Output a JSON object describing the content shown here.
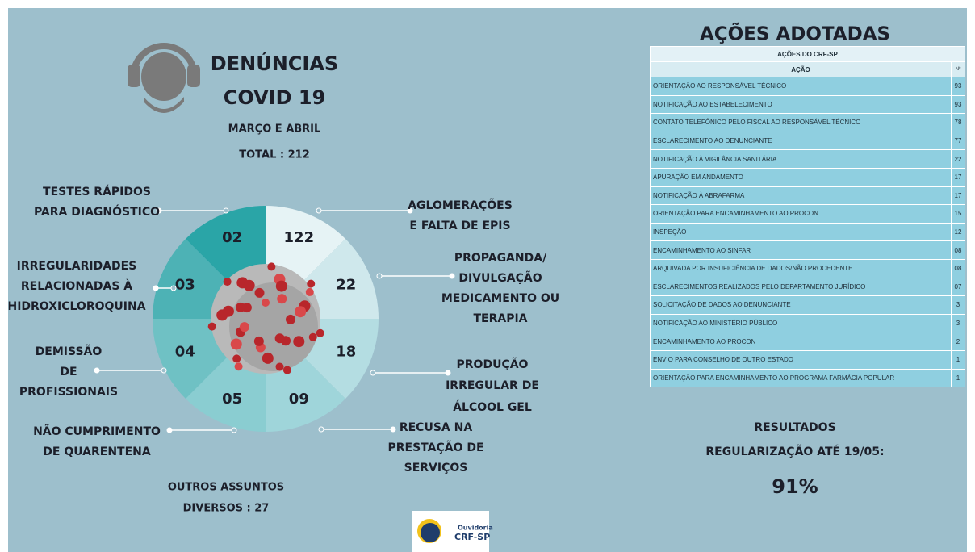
{
  "header": {
    "title": "DENÚNCIAS",
    "subtitle": "COVID 19",
    "period": "MARÇO E ABRIL",
    "total": "TOTAL : 212"
  },
  "segments": [
    {
      "value": "122",
      "label": [
        "AGLOMERAÇÕES",
        "E FALTA DE EPIS"
      ]
    },
    {
      "value": "22",
      "label": [
        "PROPAGANDA/",
        "DIVULGAÇÃO",
        "MEDICAMENTO OU",
        "TERAPIA"
      ]
    },
    {
      "value": "18",
      "label": [
        "PRODUÇÃO",
        "IRREGULAR DE",
        "ÁLCOOL GEL"
      ]
    },
    {
      "value": "09",
      "label": [
        "RECUSA NA",
        "PRESTAÇÃO DE",
        "SERVIÇOS"
      ]
    },
    {
      "value": "05",
      "label": [
        "NÃO CUMPRIMENTO",
        "DE QUARENTENA"
      ]
    },
    {
      "value": "04",
      "label": [
        "DEMISSÃO",
        "DE",
        "PROFISSIONAIS"
      ]
    },
    {
      "value": "03",
      "label": [
        "IRREGULARIDADES",
        "RELACIONADAS À",
        "HIDROXICLOROQUINA"
      ]
    },
    {
      "value": "02",
      "label": [
        "TESTES RÁPIDOS",
        "PARA DIAGNÓSTICO"
      ]
    }
  ],
  "others": [
    "OUTROS ASSUNTOS",
    "DIVERSOS : 27"
  ],
  "table": {
    "title": "AÇÕES ADOTADAS",
    "caption": "AÇÕES DO CRF-SP",
    "columns": [
      "AÇÃO",
      "Nº"
    ],
    "rows": [
      [
        "ORIENTAÇÃO AO RESPONSÁVEL TÉCNICO",
        "93"
      ],
      [
        "NOTIFICAÇÃO AO ESTABELECIMENTO",
        "93"
      ],
      [
        "CONTATO TELEFÔNICO PELO FISCAL AO RESPONSÁVEL TÉCNICO",
        "78"
      ],
      [
        "ESCLARECIMENTO AO DENUNCIANTE",
        "77"
      ],
      [
        "NOTIFICAÇÃO À VIGILÂNCIA SANITÁRIA",
        "22"
      ],
      [
        "APURAÇÃO EM ANDAMENTO",
        "17"
      ],
      [
        "NOTIFICAÇÃO À ABRAFARMA",
        "17"
      ],
      [
        "ORIENTAÇÃO PARA ENCAMINHAMENTO AO PROCON",
        "15"
      ],
      [
        "INSPEÇÃO",
        "12"
      ],
      [
        "ENCAMINHAMENTO AO SINFAR",
        "08"
      ],
      [
        "ARQUIVADA POR INSUFICIÊNCIA DE DADOS/NÃO PROCEDENTE",
        "08"
      ],
      [
        "ESCLARECIMENTOS REALIZADOS PELO DEPARTAMENTO JURÍDICO",
        "07"
      ],
      [
        "SOLICITAÇÃO DE DADOS AO DENUNCIANTE",
        "3"
      ],
      [
        "NOTIFICAÇÃO AO MINISTÉRIO PÚBLICO",
        "3"
      ],
      [
        "ENCAMINHAMENTO AO PROCON",
        "2"
      ],
      [
        "ENVIO PARA CONSELHO DE OUTRO ESTADO",
        "1"
      ],
      [
        "ORIENTAÇÃO PARA ENCAMINHAMENTO AO PROGRAMA FARMÁCIA POPULAR",
        "1"
      ]
    ]
  },
  "results": {
    "title": "RESULTADOS",
    "subtitle": "REGULARIZAÇÃO ATÉ 19/05:",
    "value": "91%"
  },
  "logo": [
    "Ouvidoria",
    "CRF-SP"
  ]
}
